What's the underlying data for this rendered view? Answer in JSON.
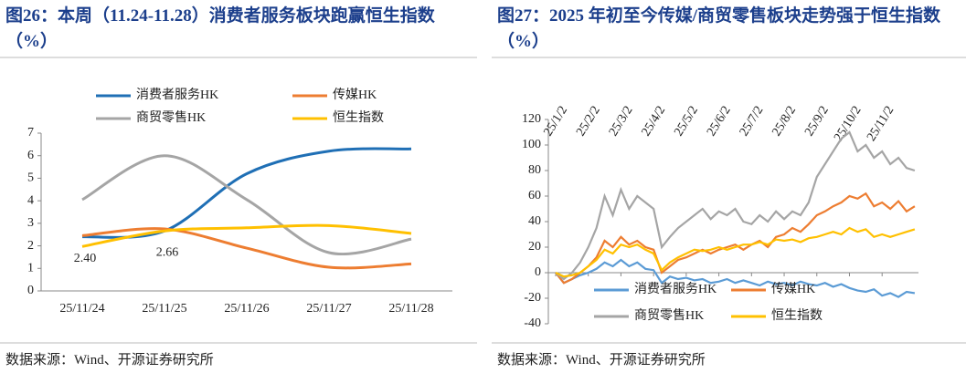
{
  "chart_data": [
    {
      "type": "line",
      "title": "图26：本周（11.24-11.28）消费者服务板块跑赢恒生指数（%）",
      "source": "数据来源：Wind、开源证券研究所",
      "categories": [
        "25/11/24",
        "25/11/25",
        "25/11/26",
        "25/11/27",
        "25/11/28"
      ],
      "series": [
        {
          "name": "消费者服务HK",
          "color": "#1f6fb5",
          "values": [
            2.4,
            2.66,
            5.2,
            6.2,
            6.3
          ],
          "value_labels": [
            "2.40",
            "2.66",
            null,
            null,
            null
          ]
        },
        {
          "name": "传媒HK",
          "color": "#ed7d31",
          "values": [
            2.45,
            2.75,
            1.9,
            1.05,
            1.2
          ]
        },
        {
          "name": "商贸零售HK",
          "color": "#a5a5a5",
          "values": [
            4.05,
            6.0,
            4.05,
            1.7,
            2.3
          ]
        },
        {
          "name": "恒生指数",
          "color": "#ffc000",
          "values": [
            1.97,
            2.66,
            2.8,
            2.9,
            2.55
          ]
        }
      ],
      "ylim": [
        0,
        7
      ],
      "yticks": [
        0,
        1,
        2,
        3,
        4,
        5,
        6,
        7
      ],
      "legend": "top",
      "smooth": true
    },
    {
      "type": "line",
      "title": "图27：2025 年初至今传媒/商贸零售板块走势强于恒生指数（%）",
      "source": "数据来源：Wind、开源证券研究所",
      "categories": [
        "25/1/2",
        null,
        null,
        null,
        "25/2/2",
        null,
        null,
        null,
        "25/3/2",
        null,
        null,
        null,
        "25/4/2",
        null,
        null,
        null,
        "25/5/2",
        null,
        null,
        null,
        "25/6/2",
        null,
        null,
        null,
        "25/7/2",
        null,
        null,
        null,
        "25/8/2",
        null,
        null,
        null,
        "25/9/2",
        null,
        null,
        null,
        "25/10/2",
        null,
        null,
        null,
        "25/11/2",
        null,
        null,
        null,
        null
      ],
      "series": [
        {
          "name": "消费者服务HK",
          "color": "#5b9bd5",
          "values": [
            0,
            -8,
            -5,
            -2,
            0,
            3,
            8,
            5,
            10,
            5,
            8,
            3,
            2,
            -8,
            -3,
            -5,
            -4,
            -6,
            -5,
            -8,
            -7,
            -5,
            -8,
            -6,
            -8,
            -10,
            -7,
            -9,
            -8,
            -10,
            -7,
            -9,
            -10,
            -8,
            -11,
            -9,
            -12,
            -14,
            -15,
            -13,
            -18,
            -16,
            -19,
            -15,
            -16
          ]
        },
        {
          "name": "传媒HK",
          "color": "#ed7d31",
          "values": [
            0,
            -8,
            -5,
            0,
            5,
            12,
            25,
            20,
            28,
            22,
            25,
            20,
            18,
            0,
            5,
            10,
            12,
            15,
            18,
            15,
            18,
            20,
            22,
            18,
            22,
            25,
            20,
            28,
            30,
            35,
            32,
            38,
            45,
            48,
            52,
            55,
            60,
            58,
            62,
            52,
            55,
            50,
            56,
            48,
            52
          ]
        },
        {
          "name": "商贸零售HK",
          "color": "#a5a5a5",
          "values": [
            0,
            -5,
            0,
            8,
            20,
            35,
            60,
            45,
            65,
            50,
            60,
            55,
            50,
            20,
            28,
            35,
            40,
            45,
            50,
            42,
            48,
            45,
            50,
            40,
            38,
            45,
            40,
            48,
            42,
            48,
            45,
            55,
            75,
            85,
            95,
            105,
            110,
            95,
            100,
            90,
            95,
            85,
            90,
            82,
            80
          ]
        },
        {
          "name": "恒生指数",
          "color": "#ffc000",
          "values": [
            0,
            -3,
            -2,
            0,
            5,
            10,
            18,
            15,
            22,
            20,
            22,
            18,
            15,
            2,
            8,
            12,
            15,
            18,
            17,
            18,
            20,
            18,
            20,
            22,
            22,
            24,
            22,
            26,
            25,
            26,
            24,
            27,
            28,
            30,
            32,
            30,
            35,
            32,
            34,
            28,
            30,
            28,
            30,
            32,
            34
          ]
        }
      ],
      "ylim": [
        -40,
        120
      ],
      "yticks": [
        -40,
        -20,
        0,
        20,
        40,
        60,
        80,
        100,
        120
      ],
      "legend": "bottom",
      "smooth": false
    }
  ]
}
